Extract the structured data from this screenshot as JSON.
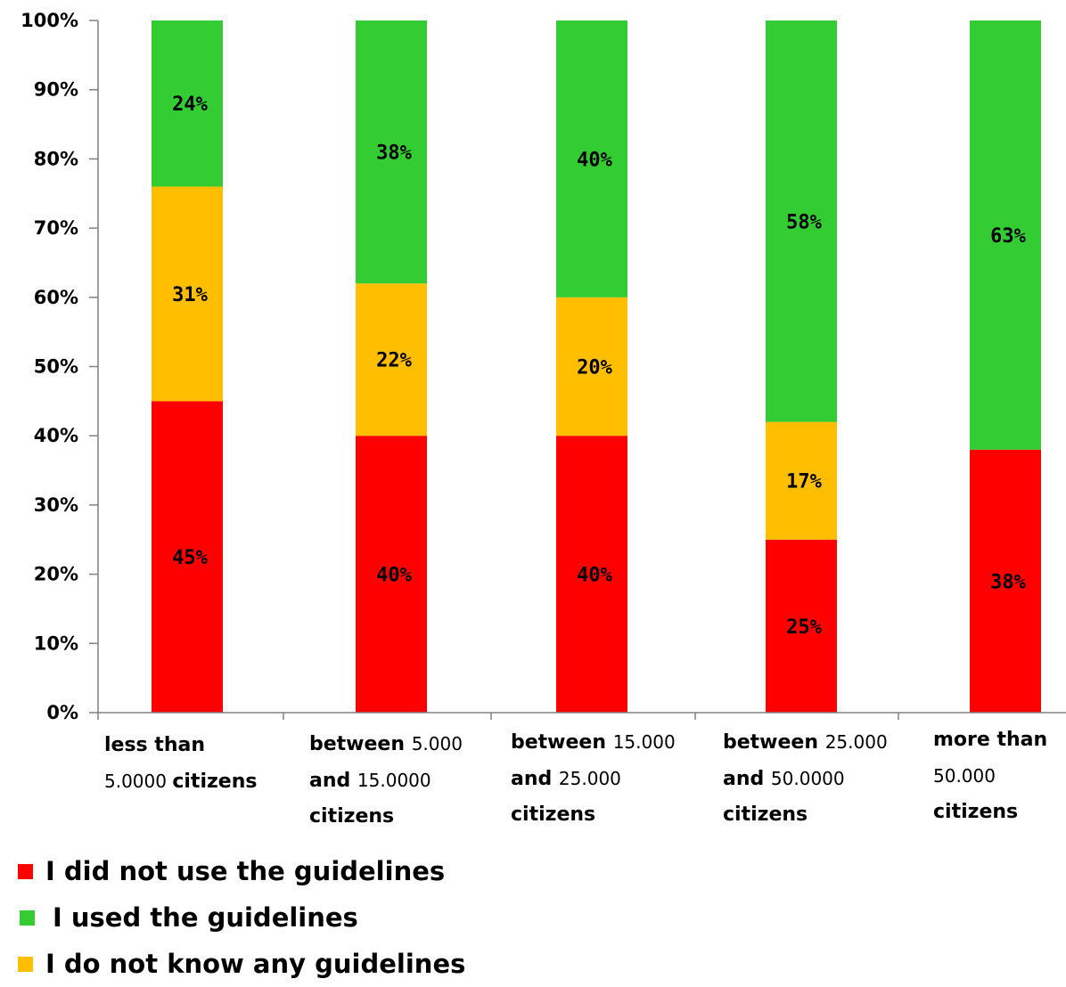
{
  "chart_data": {
    "type": "bar",
    "stacked": true,
    "categories": [
      {
        "bold1": "less than",
        "thin1": "",
        "thin2": "5.0000",
        "bold2": "citizens",
        "bold3": ""
      },
      {
        "bold1": "between",
        "thin1": "5.000",
        "bold2": "and",
        "thin2": "15.0000",
        "bold3": "citizens"
      },
      {
        "bold1": "between",
        "thin1": "15.000",
        "bold2": "and",
        "thin2": "25.000",
        "bold3": "citizens"
      },
      {
        "bold1": "between",
        "thin1": "25.000",
        "bold2": "and",
        "thin2": "50.0000",
        "bold3": "citizens"
      },
      {
        "bold1": "more than",
        "thin1": "",
        "bold2": "",
        "thin2": "50.000",
        "bold3": "citizens"
      }
    ],
    "series": [
      {
        "name": "I did not use the guidelines",
        "color": "#ff0000",
        "values": [
          45,
          40,
          40,
          25,
          38
        ]
      },
      {
        "name": "I do not know any guidelines",
        "color": "#ffbf00",
        "values": [
          31,
          22,
          20,
          17,
          0
        ]
      },
      {
        "name": "I used the guidelines",
        "color": "#33cc33",
        "values": [
          24,
          38,
          40,
          58,
          63
        ]
      }
    ],
    "data_labels": [
      [
        "45%",
        "40%",
        "40%",
        "25%",
        "38%"
      ],
      [
        "31%",
        "22%",
        "20%",
        "17%",
        ""
      ],
      [
        "24%",
        "38%",
        "40%",
        "58%",
        "63%"
      ]
    ],
    "y_ticks": [
      "0%",
      "10%",
      "20%",
      "30%",
      "40%",
      "50%",
      "60%",
      "70%",
      "80%",
      "90%",
      "100%"
    ],
    "ylim": [
      0,
      100
    ],
    "grid": false,
    "legend_position": "bottom-left"
  },
  "legend": [
    {
      "label": "I did not use the guidelines",
      "color": "#ff0000"
    },
    {
      "label": "I used the guidelines",
      "color": "#33cc33"
    },
    {
      "label": "I do not know any guidelines",
      "color": "#ffbf00"
    }
  ]
}
